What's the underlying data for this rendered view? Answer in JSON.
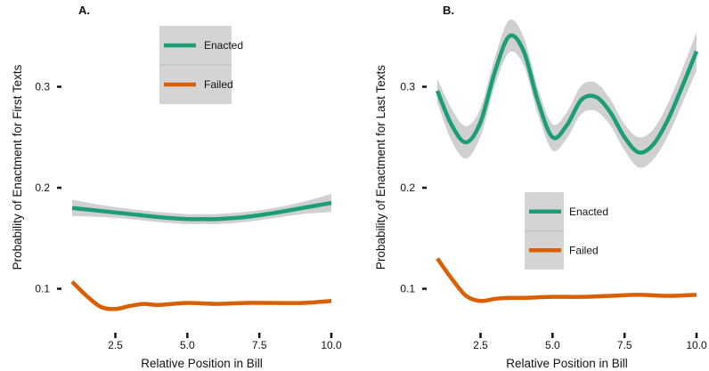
{
  "chart_data": [
    {
      "type": "line",
      "panel_label": "A.",
      "xlabel": "Relative Position in Bill",
      "ylabel": "Probability of Enactment for First Texts",
      "xlim": [
        1,
        10
      ],
      "ylim": [
        0.06,
        0.385
      ],
      "x_ticks": [
        2.5,
        5.0,
        7.5,
        10.0
      ],
      "x_tick_labels": [
        "2.5",
        "5.0",
        "7.5",
        "10.0"
      ],
      "y_ticks": [
        0.1,
        0.2,
        0.3
      ],
      "y_tick_labels": [
        "0.1",
        "0.2",
        "0.3"
      ],
      "grid": false,
      "legend_position": "top-center",
      "series": [
        {
          "name": "Enacted",
          "color": "#1b9e77",
          "confidence_band": true,
          "x": [
            1,
            2,
            3,
            4,
            5,
            5.5,
            6,
            7,
            8,
            9,
            10
          ],
          "y": [
            0.18,
            0.177,
            0.174,
            0.171,
            0.169,
            0.169,
            0.169,
            0.171,
            0.175,
            0.18,
            0.185
          ],
          "ci_width": [
            0.008,
            0.006,
            0.005,
            0.005,
            0.005,
            0.005,
            0.005,
            0.005,
            0.005,
            0.006,
            0.009
          ]
        },
        {
          "name": "Failed",
          "color": "#d95f02",
          "confidence_band": false,
          "x": [
            1,
            1.5,
            2,
            2.5,
            3,
            3.5,
            4,
            5,
            6,
            7,
            8,
            9,
            10
          ],
          "y": [
            0.107,
            0.093,
            0.082,
            0.08,
            0.083,
            0.085,
            0.084,
            0.086,
            0.085,
            0.086,
            0.086,
            0.086,
            0.088
          ],
          "ci_width": []
        }
      ]
    },
    {
      "type": "line",
      "panel_label": "B.",
      "xlabel": "Relative Position in Bill",
      "ylabel": "Probability of Enactment for Last Texts",
      "xlim": [
        1,
        10
      ],
      "ylim": [
        0.06,
        0.385
      ],
      "x_ticks": [
        2.5,
        5.0,
        7.5,
        10.0
      ],
      "x_tick_labels": [
        "2.5",
        "5.0",
        "7.5",
        "10.0"
      ],
      "y_ticks": [
        0.1,
        0.2,
        0.3
      ],
      "y_tick_labels": [
        "0.1",
        "0.2",
        "0.3"
      ],
      "grid": false,
      "legend_position": "center",
      "series": [
        {
          "name": "Enacted",
          "color": "#1b9e77",
          "confidence_band": true,
          "x": [
            1,
            1.5,
            2,
            2.5,
            3,
            3.5,
            4,
            4.5,
            5,
            5.5,
            6,
            6.5,
            7,
            7.5,
            8,
            8.5,
            9,
            9.5,
            10
          ],
          "y": [
            0.296,
            0.262,
            0.245,
            0.265,
            0.315,
            0.35,
            0.335,
            0.285,
            0.25,
            0.262,
            0.287,
            0.29,
            0.275,
            0.25,
            0.235,
            0.243,
            0.267,
            0.3,
            0.335
          ],
          "ci_width": [
            0.012,
            0.016,
            0.016,
            0.014,
            0.014,
            0.016,
            0.014,
            0.013,
            0.013,
            0.013,
            0.014,
            0.014,
            0.013,
            0.013,
            0.015,
            0.015,
            0.016,
            0.017,
            0.019
          ]
        },
        {
          "name": "Failed",
          "color": "#d95f02",
          "confidence_band": false,
          "x": [
            1,
            1.5,
            2,
            2.5,
            3,
            3.5,
            4,
            5,
            6,
            7,
            8,
            9,
            10
          ],
          "y": [
            0.13,
            0.11,
            0.093,
            0.088,
            0.09,
            0.091,
            0.091,
            0.092,
            0.092,
            0.093,
            0.094,
            0.093,
            0.094
          ],
          "ci_width": []
        }
      ]
    }
  ]
}
